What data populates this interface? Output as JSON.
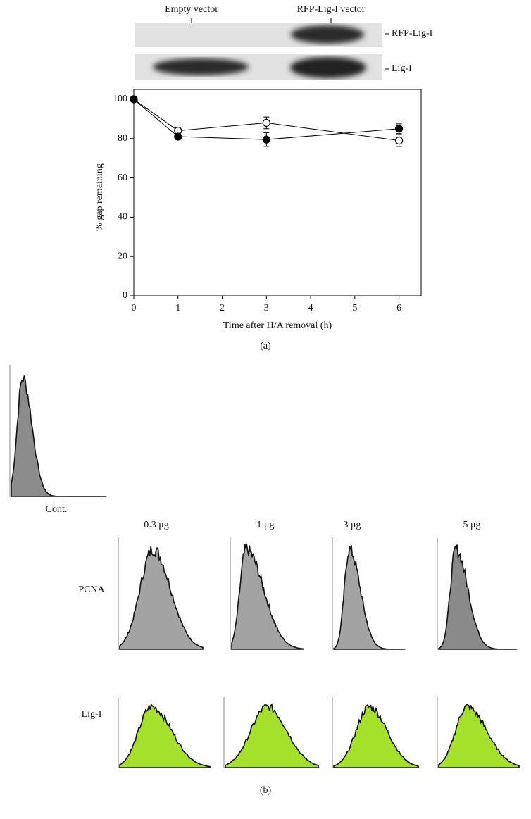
{
  "blot": {
    "lanes": [
      "Empty vector",
      "RFP-Lig-I vector"
    ],
    "bands": [
      "RFP-Lig-I",
      "Lig-I"
    ]
  },
  "chart_data": {
    "type": "line",
    "x_label": "Time after H/A removal (h)",
    "y_label": "% gap remaining",
    "x": [
      0,
      1,
      3,
      6
    ],
    "series": [
      {
        "color": "#ffffff",
        "values": [
          100,
          84,
          88,
          79
        ],
        "errors": [
          0,
          1.5,
          3,
          3
        ]
      },
      {
        "color": "#000000",
        "values": [
          100,
          81,
          79.5,
          85
        ],
        "errors": [
          0,
          1.5,
          3.5,
          2.5
        ]
      }
    ],
    "xlim": [
      0,
      6.5
    ],
    "xticks": [
      0,
      1,
      2,
      3,
      4,
      5,
      6
    ],
    "ylim": [
      0,
      105
    ],
    "yticks": [
      0,
      20,
      40,
      60,
      80,
      100
    ]
  },
  "panel_a_label": "(a)",
  "panel_b": {
    "control": "Cont.",
    "doses": [
      "0.3 μg",
      "1 μg",
      "3 μg",
      "5 μg"
    ],
    "rows": [
      "PCNA",
      "Lig-I"
    ],
    "label": "(b)"
  }
}
